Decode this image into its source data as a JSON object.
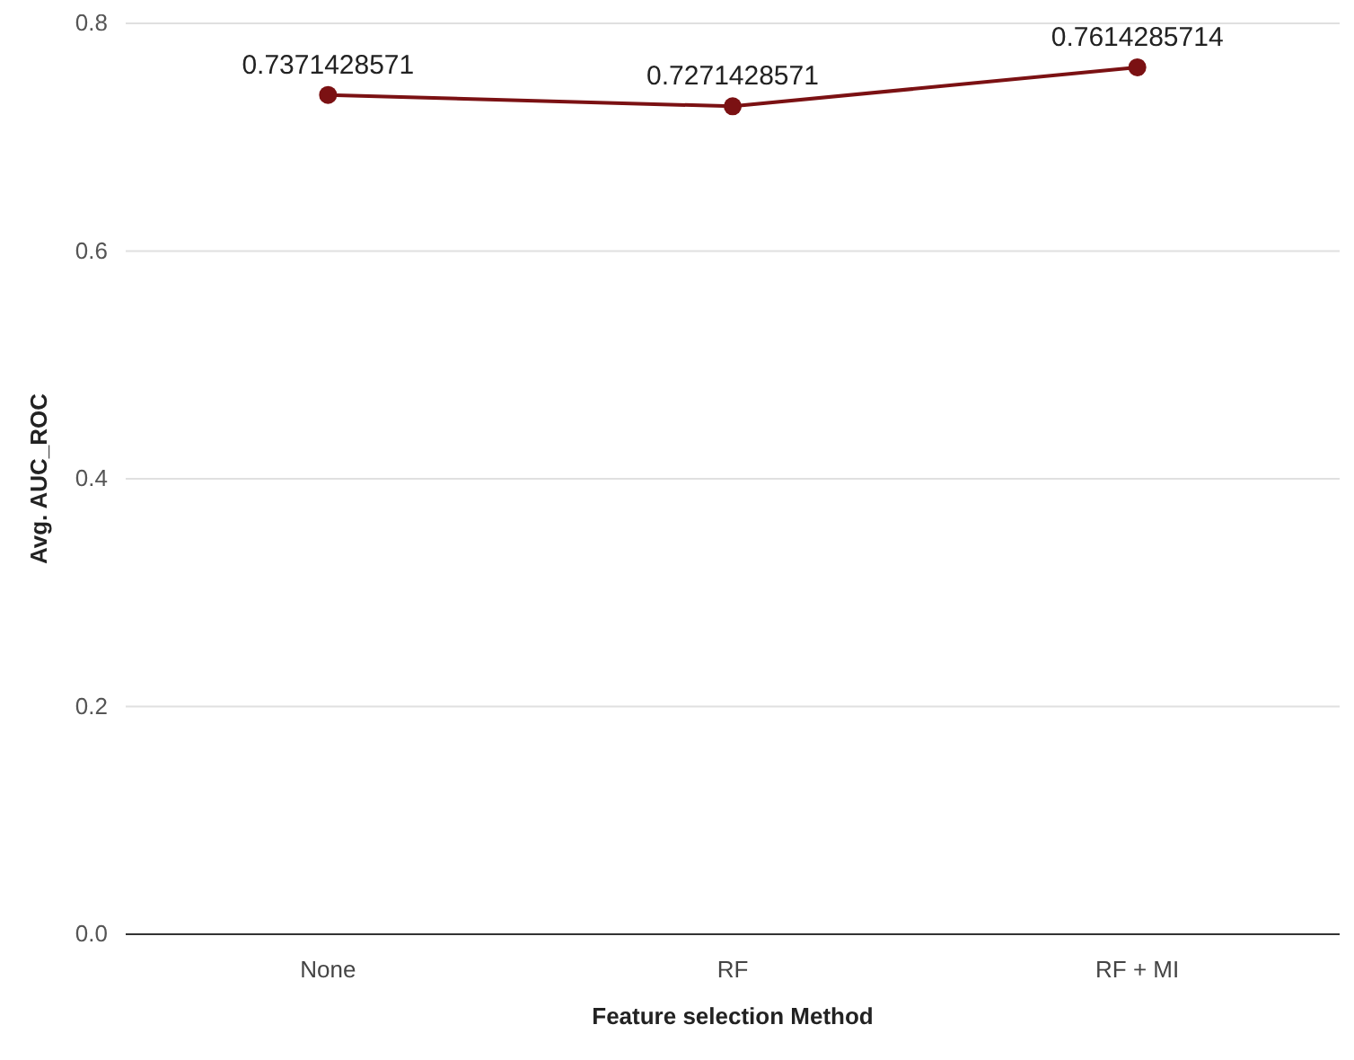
{
  "chart_data": {
    "type": "line",
    "xlabel": "Feature selection Method",
    "ylabel": "Avg. AUC_ROC",
    "categories": [
      "None",
      "RF",
      "RF + MI"
    ],
    "series": [
      {
        "color": "#7b1113",
        "values": [
          0.7371428571,
          0.7271428571,
          0.7614285714
        ]
      }
    ],
    "ylim": [
      0,
      0.8
    ],
    "yticks": [
      {
        "value": 0,
        "label": "0.0"
      },
      {
        "value": 0.2,
        "label": "0.2"
      },
      {
        "value": 0.4,
        "label": "0.4"
      },
      {
        "value": 0.6,
        "label": "0.6"
      },
      {
        "value": 0.8,
        "label": "0.8"
      }
    ],
    "grid": "y",
    "marker": "circle",
    "line_style": "solid",
    "data_labels": true
  }
}
